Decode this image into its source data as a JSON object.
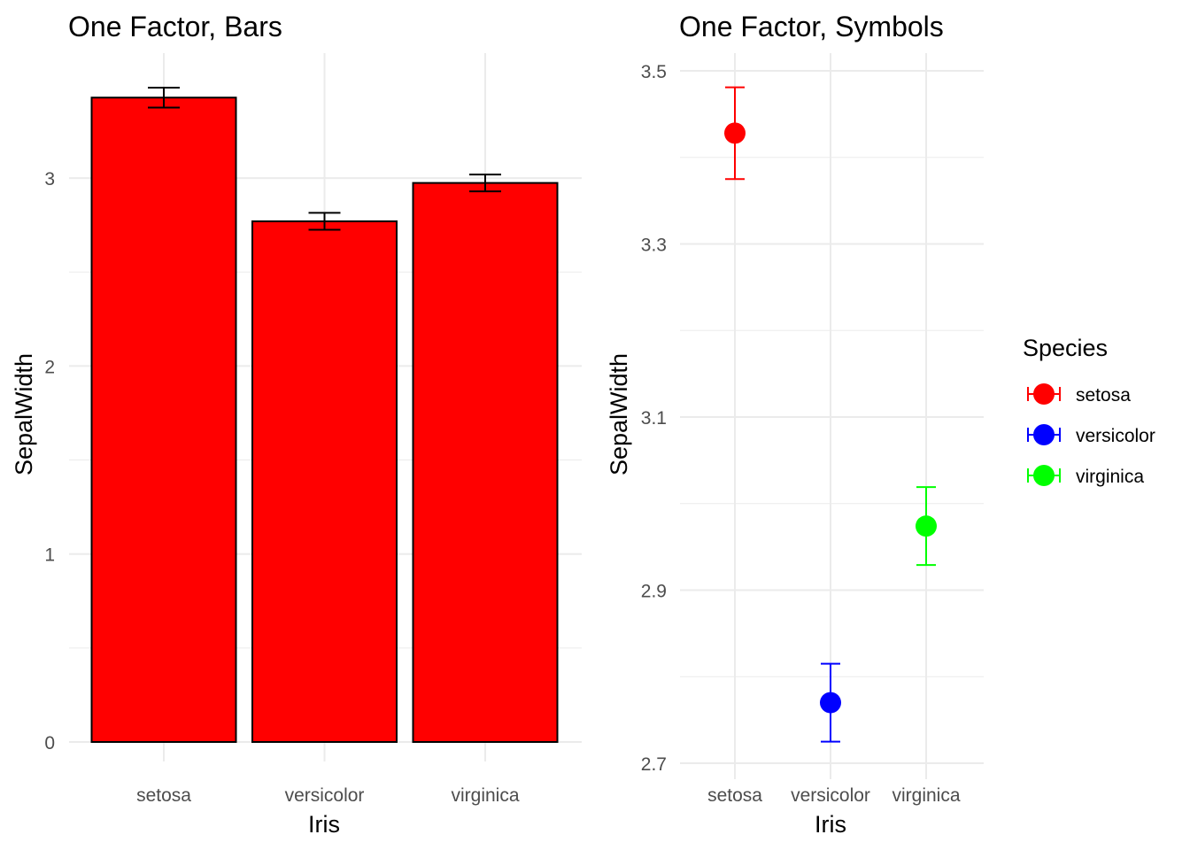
{
  "chart_data": [
    {
      "type": "bar",
      "title": "One Factor, Bars",
      "xlabel": "Iris",
      "ylabel": "SepalWidth",
      "categories": [
        "setosa",
        "versicolor",
        "virginica"
      ],
      "values": [
        3.428,
        2.77,
        2.974
      ],
      "error_low": [
        3.375,
        2.725,
        2.929
      ],
      "error_high": [
        3.481,
        2.815,
        3.019
      ],
      "bar_color": "#FF0000",
      "bar_outline": "#000000",
      "ylim": [
        0,
        3.5
      ],
      "yticks": [
        "0",
        "1",
        "2",
        "3"
      ],
      "grid": true
    },
    {
      "type": "scatter",
      "title": "One Factor, Symbols",
      "xlabel": "Iris",
      "ylabel": "SepalWidth",
      "categories": [
        "setosa",
        "versicolor",
        "virginica"
      ],
      "values": [
        3.428,
        2.77,
        2.974
      ],
      "error_low": [
        3.375,
        2.725,
        2.929
      ],
      "error_high": [
        3.481,
        2.815,
        3.019
      ],
      "colors": [
        "#FF0000",
        "#0000FF",
        "#00FF00"
      ],
      "ylim": [
        2.7,
        3.5
      ],
      "yticks": [
        "2.7",
        "2.9",
        "3.1",
        "3.3",
        "3.5"
      ],
      "grid": true,
      "legend": {
        "title": "Species",
        "placement": "right",
        "entries": [
          "setosa",
          "versicolor",
          "virginica"
        ]
      }
    }
  ]
}
